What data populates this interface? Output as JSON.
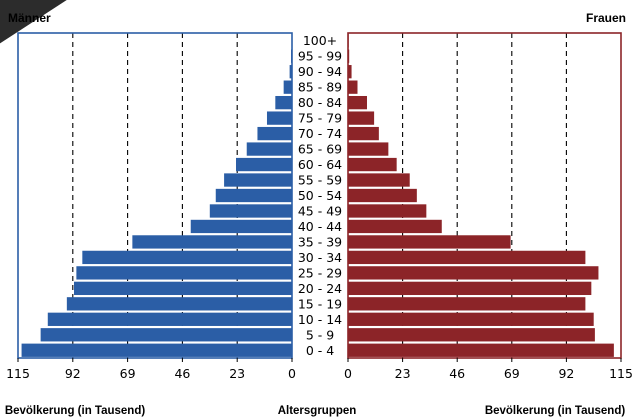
{
  "labels": {
    "left_title": "Männer",
    "right_title": "Frauen",
    "left_xlabel": "Bevölkerung (in Tausend)",
    "center_label": "Altersgruppen",
    "right_xlabel": "Bevölkerung (in Tausend)"
  },
  "chart_data": {
    "type": "bar",
    "categories": [
      "0 - 4",
      "5 - 9",
      "10 - 14",
      "15 - 19",
      "20 - 24",
      "25 - 29",
      "30 - 34",
      "35 - 39",
      "40 - 44",
      "45 - 49",
      "50 - 54",
      "55 - 59",
      "60 - 64",
      "65 - 69",
      "70 - 74",
      "75 - 79",
      "80 - 84",
      "85 - 89",
      "90 - 94",
      "95 - 99",
      "100+"
    ],
    "series": [
      {
        "name": "Männer",
        "color": "#2b5ea6",
        "values": [
          113.5,
          105.5,
          102.5,
          94.5,
          91.5,
          90.5,
          88.0,
          67.0,
          42.5,
          34.5,
          32.0,
          28.5,
          23.5,
          19.0,
          14.5,
          10.5,
          7.0,
          3.5,
          1.0,
          0.4,
          0.2
        ]
      },
      {
        "name": "Frauen",
        "color": "#8c2428",
        "values": [
          112.0,
          104.0,
          103.5,
          100.0,
          102.5,
          105.5,
          100.0,
          68.5,
          39.5,
          33.0,
          29.0,
          26.0,
          20.5,
          17.0,
          13.0,
          11.0,
          8.0,
          4.0,
          1.5,
          0.5,
          0.3
        ]
      }
    ],
    "xticks": [
      "115",
      "92",
      "69",
      "46",
      "23",
      "0"
    ],
    "xlim": [
      0,
      115
    ],
    "grid_ticks": [
      23,
      46,
      69,
      92
    ],
    "grid": "dashed vertical"
  }
}
